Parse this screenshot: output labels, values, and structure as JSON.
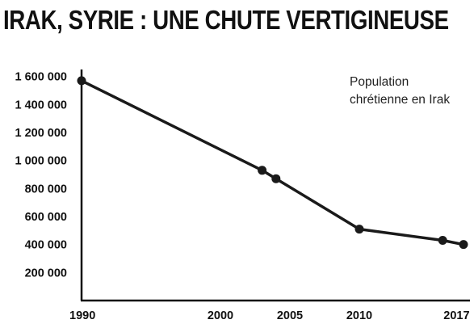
{
  "chart_data": {
    "type": "line",
    "title": "IRAK, SYRIE : UNE CHUTE VERTIGINEUSE",
    "xlabel": "",
    "ylabel": "",
    "xlim": [
      1990,
      2017.5
    ],
    "ylim": [
      0,
      1650000
    ],
    "x_ticks": [
      1990,
      2000,
      2005,
      2010,
      2017
    ],
    "y_ticks": [
      200000,
      400000,
      600000,
      800000,
      1000000,
      1200000,
      1400000,
      1600000
    ],
    "y_tick_labels": [
      "200 000",
      "400 000",
      "600 000",
      "800 000",
      "1 000 000",
      "1 200 000",
      "1 400 000",
      "1 600 000"
    ],
    "legend_lines": [
      "Population",
      "chrétienne en Irak"
    ],
    "legend_placement": "top-right",
    "grid": false,
    "line_color": "#1a1a1a",
    "series": [
      {
        "name": "Population chrétienne en Irak",
        "points": [
          {
            "x": 1990,
            "y": 1570000
          },
          {
            "x": 2003,
            "y": 930000
          },
          {
            "x": 2004,
            "y": 870000
          },
          {
            "x": 2010,
            "y": 510000
          },
          {
            "x": 2016,
            "y": 430000
          },
          {
            "x": 2017.5,
            "y": 400000
          }
        ]
      }
    ]
  }
}
